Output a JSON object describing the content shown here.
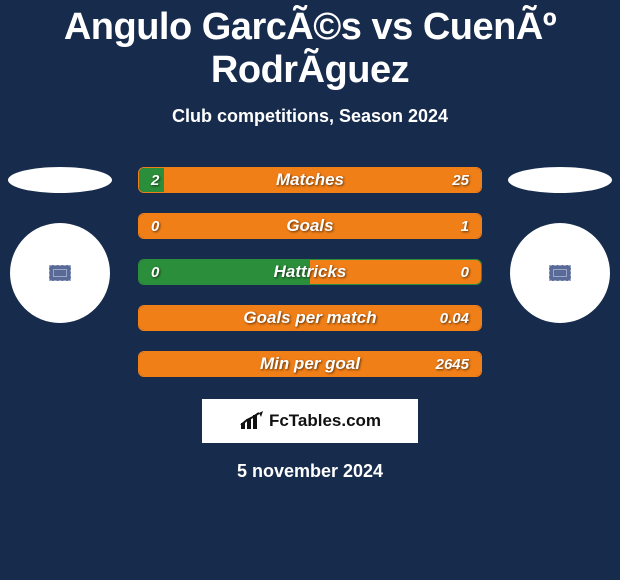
{
  "title": "Angulo GarcÃ©s vs CuenÃº RodrÃ­guez",
  "subtitle": "Club competitions, Season 2024",
  "date": "5 november 2024",
  "brand": "FcTables.com",
  "colors": {
    "background": "#172b4c",
    "left_fill": "#2b8e3a",
    "right_fill": "#f07f18",
    "bar_border_green": "#2b8e3a",
    "bar_border_orange": "#f07f18",
    "bar_bg": "transparent"
  },
  "bars": [
    {
      "label": "Matches",
      "left": "2",
      "right": "25",
      "left_num": 2,
      "right_num": 25,
      "left_pct": 7.4,
      "right_pct": 92.6,
      "border": "#f07f18"
    },
    {
      "label": "Goals",
      "left": "0",
      "right": "1",
      "left_num": 0,
      "right_num": 1,
      "left_pct": 0,
      "right_pct": 100,
      "border": "#f07f18"
    },
    {
      "label": "Hattricks",
      "left": "0",
      "right": "0",
      "left_num": 0,
      "right_num": 0,
      "left_pct": 50,
      "right_pct": 50,
      "border": "#2b8e3a"
    },
    {
      "label": "Goals per match",
      "left": "",
      "right": "0.04",
      "left_num": 0,
      "right_num": 0.04,
      "left_pct": 0,
      "right_pct": 100,
      "border": "#f07f18"
    },
    {
      "label": "Min per goal",
      "left": "",
      "right": "2645",
      "left_num": 0,
      "right_num": 2645,
      "left_pct": 0,
      "right_pct": 100,
      "border": "#f07f18"
    }
  ]
}
